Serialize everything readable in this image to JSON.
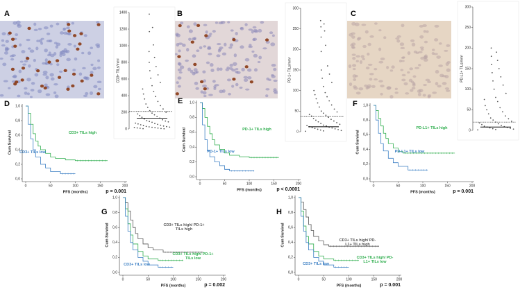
{
  "panel_labels": [
    "A",
    "B",
    "C",
    "D",
    "E",
    "F",
    "G",
    "H"
  ],
  "chart_data": [
    {
      "type": "dotplot",
      "y_label": "CD3+ TILs/mm²",
      "ylim": [
        0,
        1400
      ],
      "yticks": [
        0,
        200,
        400,
        600,
        800,
        1000,
        1200,
        1400
      ],
      "color": "#555555",
      "values": [
        1380,
        1220,
        1170,
        1010,
        930,
        860,
        800,
        750,
        700,
        650,
        610,
        560,
        520,
        480,
        450,
        420,
        390,
        360,
        330,
        300,
        280,
        260,
        240,
        220,
        200,
        190,
        180,
        170,
        160,
        150,
        140,
        130,
        120,
        110,
        100,
        95,
        90,
        85,
        80,
        70,
        65,
        60,
        55,
        50,
        45,
        40,
        35,
        30,
        28,
        25,
        22,
        20,
        18,
        15,
        12,
        10,
        8,
        5,
        3,
        2
      ],
      "reference_lines": [
        {
          "value": 130,
          "style": "solid"
        },
        {
          "value": 210,
          "style": "dashed"
        }
      ]
    },
    {
      "type": "dotplot",
      "y_label": "PD-1+ TILs/mm²",
      "ylim": [
        0,
        300
      ],
      "yticks": [
        0,
        50,
        100,
        150,
        200,
        250,
        300
      ],
      "color": "#555555",
      "values": [
        270,
        262,
        255,
        245,
        230,
        210,
        195,
        160,
        150,
        140,
        130,
        120,
        110,
        100,
        95,
        90,
        85,
        80,
        75,
        70,
        65,
        60,
        55,
        50,
        48,
        45,
        42,
        40,
        38,
        35,
        32,
        30,
        28,
        26,
        24,
        22,
        20,
        18,
        16,
        15,
        14,
        12,
        11,
        10,
        9,
        8,
        7,
        6,
        5,
        4,
        3,
        2,
        1
      ],
      "reference_lines": [
        {
          "value": 12,
          "style": "solid"
        },
        {
          "value": 37,
          "style": "dashed"
        }
      ]
    },
    {
      "type": "dotplot",
      "y_label": "PD-L1+ TILs/mm²",
      "ylim": [
        0,
        300
      ],
      "yticks": [
        0,
        50,
        100,
        150,
        200,
        250,
        300
      ],
      "color": "#555555",
      "values": [
        200,
        190,
        180,
        170,
        160,
        150,
        140,
        130,
        120,
        110,
        100,
        90,
        80,
        75,
        70,
        60,
        55,
        50,
        45,
        40,
        35,
        30,
        28,
        25,
        22,
        20,
        18,
        16,
        14,
        12,
        10,
        9,
        8,
        7,
        6,
        5,
        4,
        3,
        2,
        1
      ],
      "reference_lines": [
        {
          "value": 8,
          "style": "solid"
        },
        {
          "value": 20,
          "style": "dashed"
        }
      ]
    },
    {
      "type": "line",
      "step": true,
      "x_label": "PFS (months)",
      "y_label": "Cum Survival",
      "annotation": "p = 0.001",
      "xlim": [
        0,
        200
      ],
      "xticks": [
        0,
        50,
        100,
        150,
        200
      ],
      "ylim": [
        0,
        1
      ],
      "yticks": [
        {
          "value": 0,
          "label": "0,0"
        },
        {
          "value": 0.2,
          "label": "0,2"
        },
        {
          "value": 0.4,
          "label": "0,4"
        },
        {
          "value": 0.6,
          "label": "0,6"
        },
        {
          "value": 0.8,
          "label": "0,8"
        },
        {
          "value": 1,
          "label": "1,0"
        }
      ],
      "series": [
        {
          "name": "CD3+ TILs high",
          "color": "#2fae4e",
          "x": [
            0,
            5,
            10,
            15,
            20,
            25,
            30,
            40,
            50,
            60,
            80,
            100,
            165
          ],
          "values": [
            1,
            0.9,
            0.75,
            0.62,
            0.52,
            0.45,
            0.4,
            0.35,
            0.3,
            0.28,
            0.26,
            0.25,
            0.25
          ]
        },
        {
          "name": "CD3+ TILs low",
          "color": "#3b7fc4",
          "x": [
            0,
            5,
            10,
            15,
            20,
            30,
            40,
            50,
            70,
            100
          ],
          "values": [
            1,
            0.75,
            0.55,
            0.4,
            0.3,
            0.2,
            0.15,
            0.1,
            0.07,
            0.07
          ]
        }
      ]
    },
    {
      "type": "line",
      "step": true,
      "x_label": "PFS (months)",
      "y_label": "Cum Survival",
      "annotation": "p < 0.0001",
      "xlim": [
        0,
        200
      ],
      "xticks": [
        0,
        50,
        100,
        150,
        200
      ],
      "ylim": [
        0,
        1
      ],
      "yticks": [
        {
          "value": 0,
          "label": "0,0"
        },
        {
          "value": 0.2,
          "label": "0,2"
        },
        {
          "value": 0.4,
          "label": "0,4"
        },
        {
          "value": 0.6,
          "label": "0,6"
        },
        {
          "value": 0.8,
          "label": "0,8"
        },
        {
          "value": 1,
          "label": "1,0"
        }
      ],
      "series": [
        {
          "name": "PD-1+ TILs high",
          "color": "#2fae4e",
          "x": [
            0,
            5,
            10,
            15,
            20,
            25,
            30,
            40,
            50,
            60,
            80,
            100,
            160
          ],
          "values": [
            1,
            0.92,
            0.8,
            0.68,
            0.58,
            0.5,
            0.43,
            0.37,
            0.32,
            0.29,
            0.27,
            0.26,
            0.26
          ]
        },
        {
          "name": "PD-1+ TILs low",
          "color": "#3b7fc4",
          "x": [
            0,
            5,
            10,
            15,
            20,
            30,
            40,
            50,
            60,
            110
          ],
          "values": [
            1,
            0.7,
            0.5,
            0.35,
            0.27,
            0.2,
            0.15,
            0.1,
            0.08,
            0.08
          ]
        }
      ]
    },
    {
      "type": "line",
      "step": true,
      "x_label": "PFS (months)",
      "y_label": "Cum Survival",
      "annotation": "p = 0.001",
      "xlim": [
        0,
        200
      ],
      "xticks": [
        0,
        50,
        100,
        150,
        200
      ],
      "ylim": [
        0,
        1
      ],
      "yticks": [
        {
          "value": 0,
          "label": "0,0"
        },
        {
          "value": 0.2,
          "label": "0,2"
        },
        {
          "value": 0.4,
          "label": "0,4"
        },
        {
          "value": 0.6,
          "label": "0,6"
        },
        {
          "value": 0.8,
          "label": "0,8"
        },
        {
          "value": 1,
          "label": "1,0"
        }
      ],
      "series": [
        {
          "name": "PD-L1+ TILs high",
          "color": "#2fae4e",
          "x": [
            0,
            5,
            10,
            15,
            20,
            25,
            30,
            40,
            50,
            60,
            165
          ],
          "values": [
            1,
            0.93,
            0.82,
            0.72,
            0.62,
            0.55,
            0.48,
            0.42,
            0.37,
            0.35,
            0.35
          ]
        },
        {
          "name": "PD-L1+ TILs low",
          "color": "#3b7fc4",
          "x": [
            0,
            5,
            10,
            15,
            20,
            30,
            40,
            50,
            70,
            110
          ],
          "values": [
            1,
            0.8,
            0.62,
            0.48,
            0.38,
            0.28,
            0.22,
            0.17,
            0.12,
            0.12
          ]
        }
      ]
    },
    {
      "type": "line",
      "step": true,
      "x_label": "PFS (months)",
      "y_label": "Cum Survival",
      "annotation": "p = 0.002",
      "xlim": [
        0,
        200
      ],
      "xticks": [
        0,
        50,
        100,
        150,
        200
      ],
      "ylim": [
        0,
        1
      ],
      "yticks": [
        {
          "value": 0,
          "label": "0,0"
        },
        {
          "value": 0.2,
          "label": "0,2"
        },
        {
          "value": 0.4,
          "label": "0,4"
        },
        {
          "value": 0.6,
          "label": "0,6"
        },
        {
          "value": 0.8,
          "label": "0,8"
        },
        {
          "value": 1,
          "label": "1,0"
        }
      ],
      "series": [
        {
          "name": "CD3+ TILs high/ PD-1+ TILs high",
          "color": "#555555",
          "x": [
            0,
            5,
            10,
            15,
            20,
            25,
            30,
            40,
            50,
            60,
            80,
            160
          ],
          "values": [
            1,
            0.93,
            0.82,
            0.7,
            0.6,
            0.52,
            0.45,
            0.38,
            0.33,
            0.3,
            0.27,
            0.27
          ]
        },
        {
          "name": "CD3+ TILs high/ PD-1+ TILs low",
          "color": "#2fae4e",
          "x": [
            0,
            5,
            10,
            15,
            20,
            30,
            40,
            50,
            70,
            120
          ],
          "values": [
            1,
            0.85,
            0.65,
            0.5,
            0.38,
            0.28,
            0.22,
            0.18,
            0.16,
            0.16
          ]
        },
        {
          "name": "CD3+ TILs low",
          "color": "#3b7fc4",
          "x": [
            0,
            5,
            10,
            15,
            20,
            30,
            40,
            50,
            70,
            100
          ],
          "values": [
            1,
            0.75,
            0.55,
            0.4,
            0.3,
            0.2,
            0.15,
            0.1,
            0.07,
            0.07
          ]
        }
      ]
    },
    {
      "type": "line",
      "step": true,
      "x_label": "PFS (months)",
      "y_label": "Cum Survival",
      "annotation": "p = 0.001",
      "xlim": [
        0,
        200
      ],
      "xticks": [
        0,
        50,
        100,
        150,
        200
      ],
      "ylim": [
        0,
        1
      ],
      "yticks": [
        {
          "value": 0,
          "label": "0,0"
        },
        {
          "value": 0.2,
          "label": "0,2"
        },
        {
          "value": 0.4,
          "label": "0,4"
        },
        {
          "value": 0.6,
          "label": "0,6"
        },
        {
          "value": 0.8,
          "label": "0,8"
        },
        {
          "value": 1,
          "label": "1,0"
        }
      ],
      "series": [
        {
          "name": "CD3+ TILs high/ PD-L1+ TILs high",
          "color": "#555555",
          "x": [
            0,
            5,
            10,
            15,
            20,
            25,
            30,
            40,
            50,
            60,
            160
          ],
          "values": [
            1,
            0.94,
            0.84,
            0.74,
            0.64,
            0.56,
            0.48,
            0.42,
            0.37,
            0.35,
            0.35
          ]
        },
        {
          "name": "CD3+ TILs high/ PD-L1+ TILs low",
          "color": "#2fae4e",
          "x": [
            0,
            5,
            10,
            15,
            20,
            30,
            40,
            50,
            70,
            120
          ],
          "values": [
            1,
            0.82,
            0.62,
            0.48,
            0.38,
            0.28,
            0.22,
            0.18,
            0.16,
            0.16
          ]
        },
        {
          "name": "CD3+ TILs low",
          "color": "#3b7fc4",
          "x": [
            0,
            5,
            10,
            15,
            20,
            30,
            40,
            50,
            70,
            100
          ],
          "values": [
            1,
            0.75,
            0.55,
            0.4,
            0.3,
            0.2,
            0.15,
            0.1,
            0.07,
            0.07
          ]
        }
      ]
    }
  ]
}
